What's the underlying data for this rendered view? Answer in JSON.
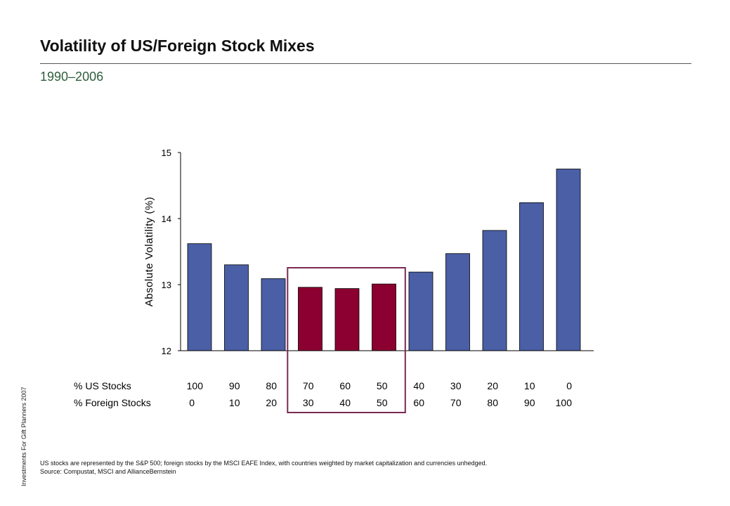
{
  "header": {
    "title": "Volatility of US/Foreign Stock Mixes",
    "subtitle": "1990–2006"
  },
  "side_note": "Investments For Gift Planners 2007",
  "footnotes": {
    "line1": "US stocks are represented by the S&P 500; foreign stocks by the MSCI EAFE Index, with countries weighted by market capitalization and currencies unhedged.",
    "line2": "Source: Compustat, MSCI and AllianceBernstein"
  },
  "colors": {
    "bar_default": "#4a5fa5",
    "bar_highlight": "#8b0030",
    "highlight_box": "#7a2a52",
    "axis": "#000000"
  },
  "chart_data": {
    "type": "bar",
    "ylabel": "Absolute Volatility (%)",
    "xlabel": "",
    "ylim": [
      12,
      15
    ],
    "yticks": [
      "12",
      "13",
      "14",
      "15"
    ],
    "categories": [
      "100/0",
      "90/10",
      "80/20",
      "70/30",
      "60/40",
      "50/50",
      "40/60",
      "30/70",
      "20/80",
      "10/90",
      "0/100"
    ],
    "values": [
      13.62,
      13.3,
      13.09,
      12.96,
      12.94,
      13.01,
      13.19,
      13.47,
      13.82,
      14.24,
      14.75
    ],
    "highlighted": [
      false,
      false,
      false,
      true,
      true,
      true,
      false,
      false,
      false,
      false,
      false
    ],
    "row_labels": {
      "us": "% US Stocks",
      "foreign": "% Foreign Stocks"
    },
    "us_pct": [
      "100",
      "90",
      "80",
      "70",
      "60",
      "50",
      "40",
      "30",
      "20",
      "10",
      "0"
    ],
    "foreign_pct": [
      "0",
      "10",
      "20",
      "30",
      "40",
      "50",
      "60",
      "70",
      "80",
      "90",
      "100"
    ],
    "grid": false,
    "legend": "none"
  }
}
